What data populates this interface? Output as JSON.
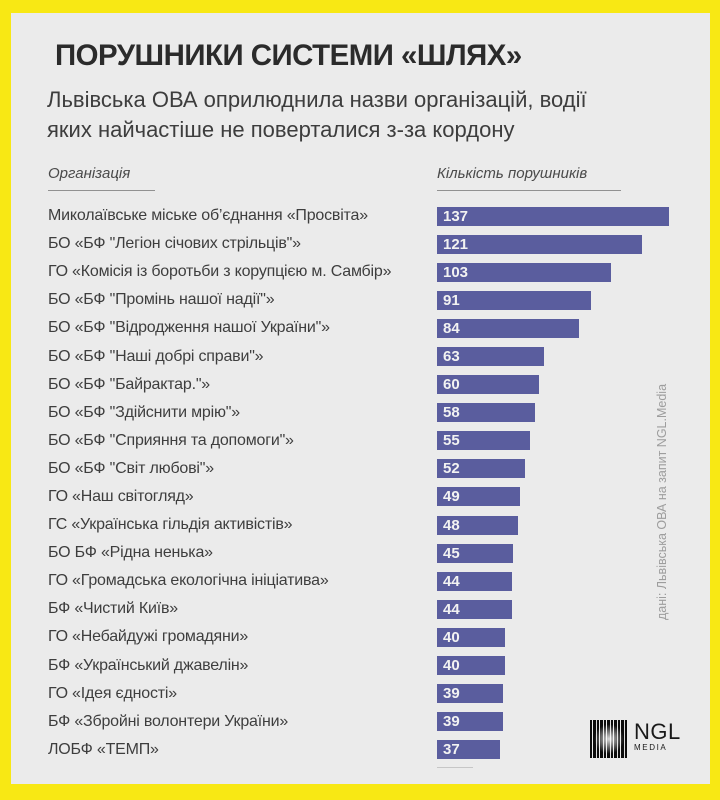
{
  "frame": {
    "border_color": "#f8e814",
    "card_color": "#ebebeb",
    "accent": "#5a5d9e"
  },
  "header": {
    "title": "ПОРУШНИКИ СИСТЕМИ «ШЛЯХ»",
    "subtitle_line1": "Львівська ОВА оприлюднила назви організацій, водії",
    "subtitle_line2": "яких найчастіше не поверталися з-за кордону"
  },
  "columns": {
    "org": "Організація",
    "count": "Кількість порушників"
  },
  "chart_data": {
    "type": "bar",
    "orientation": "horizontal",
    "title": "ПОРУШНИКИ СИСТЕМИ «ШЛЯХ»",
    "subtitle": "Львівська ОВА оприлюднила назви організацій, водії яких найчастіше не поверталися з-за кордону",
    "xlabel": "Кількість порушників",
    "ylabel": "Організація",
    "xlim": [
      0,
      137
    ],
    "grid": false,
    "legend": false,
    "bar_color": "#5a5d9e",
    "value_label_color": "#f2f2f2",
    "categories": [
      "Миколаївське міське об’єднання «Просвіта»",
      "БО «БФ \"Легіон січових стрільців\"»",
      "ГО «Комісія із боротьби з корупцією м. Самбір»",
      "БО «БФ \"Промінь нашої надії\"»",
      "БО «БФ \"Відродження нашої України\"»",
      "БО «БФ \"Наші добрі справи\"»",
      "БО «БФ \"Байрактар.\"»",
      "БО «БФ \"Здійснити мрію\"»",
      "БО «БФ \"Сприяння та допомоги\"»",
      "БО «БФ \"Світ любові\"»",
      "ГО «Наш світогляд»",
      "ГС «Українська гільдія активістів»",
      "БО БФ «Рідна ненька»",
      "ГО «Громадська екологічна ініціатива»",
      "БФ «Чистий Київ»",
      "ГО «Небайдужі громадяни»",
      "БФ «Український джавелін»",
      "ГО «Ідея єдності»",
      "БФ «Збройні волонтери України»",
      "ЛОБФ «ТЕМП»"
    ],
    "values": [
      137,
      121,
      103,
      91,
      84,
      63,
      60,
      58,
      55,
      52,
      49,
      48,
      45,
      44,
      44,
      40,
      40,
      39,
      39,
      37
    ]
  },
  "source_note": "дані: Львівська ОВА на запит NGL.Media",
  "logo": {
    "name": "NGL",
    "sub": "MEDIA"
  }
}
